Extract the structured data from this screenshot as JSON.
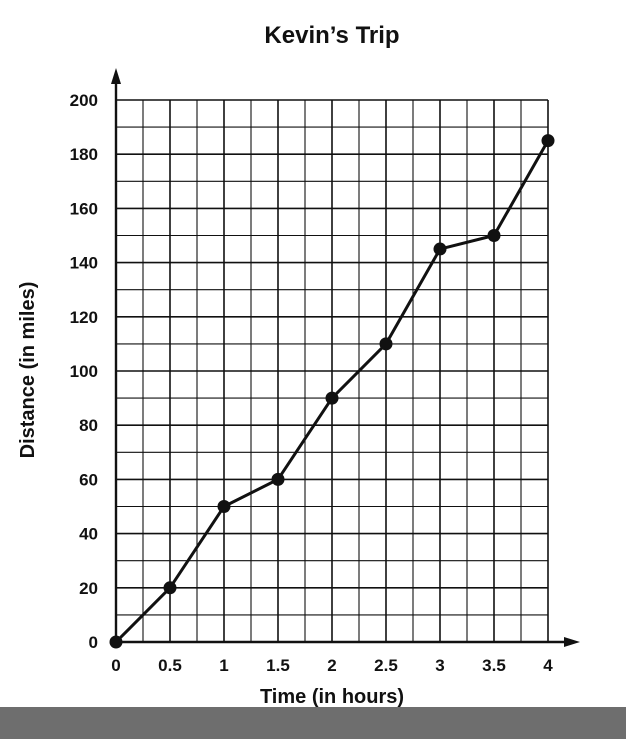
{
  "chart_data": {
    "type": "line",
    "title": "Kevin’s Trip",
    "xlabel": "Time (in hours)",
    "ylabel": "Distance (in miles)",
    "x_ticks": [
      "0",
      "0.5",
      "1",
      "1.5",
      "2",
      "2.5",
      "3",
      "3.5",
      "4"
    ],
    "y_ticks": [
      "0",
      "20",
      "40",
      "60",
      "80",
      "100",
      "120",
      "140",
      "160",
      "180",
      "200"
    ],
    "xlim": [
      0,
      4
    ],
    "ylim": [
      0,
      200
    ],
    "grid": true,
    "minor_grid_per_major": 2,
    "series": [
      {
        "x": [
          0,
          0.5,
          1,
          1.5,
          2,
          2.5,
          3,
          3.5,
          4
        ],
        "y": [
          0,
          20,
          50,
          60,
          90,
          110,
          145,
          150,
          185
        ]
      }
    ],
    "colors": {
      "line": "#111111",
      "grid": "#111111"
    }
  }
}
